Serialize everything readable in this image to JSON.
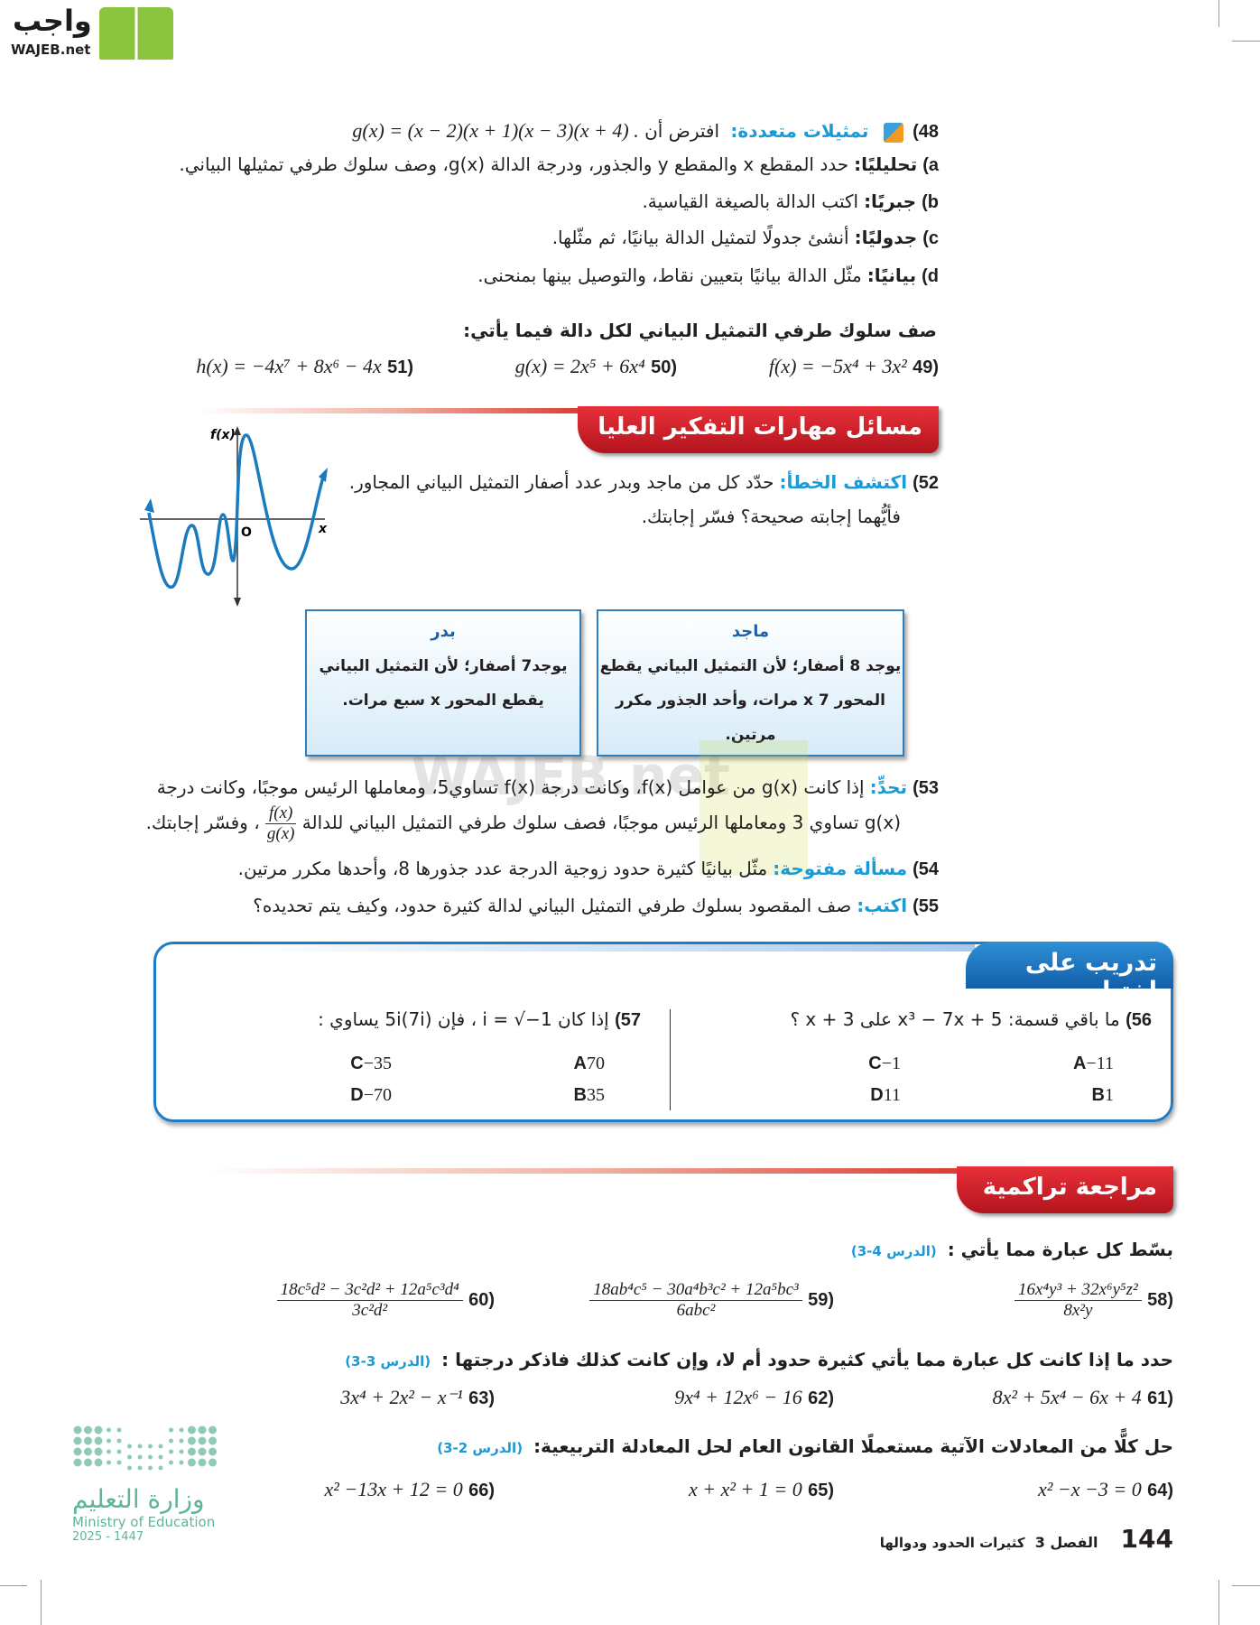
{
  "logo": {
    "arabic": "واجب",
    "latin": "WAJEB.net",
    "colors": {
      "green": "#7ab32e",
      "dark": "#1c1c1c"
    }
  },
  "watermark": "WAJEB.net",
  "q48": {
    "num": "48)",
    "label": "تمثيلات متعددة:",
    "text": "افترض أن",
    "math": "g(x) = (x − 2)(x + 1)(x − 3)(x + 4) .",
    "parts": [
      {
        "letter": "a)",
        "label": "تحليليًا:",
        "text": "حدد المقطع x والمقطع y والجذور، ودرجة الدالة g(x)، وصف سلوك طرفي تمثيلها البياني."
      },
      {
        "letter": "b)",
        "label": "جبريًا:",
        "text": "اكتب الدالة بالصيغة القياسية."
      },
      {
        "letter": "c)",
        "label": "جدوليًا:",
        "text": "أنشئ جدولًا لتمثيل الدالة بيانيًا، ثم مثّلها."
      },
      {
        "letter": "d)",
        "label": "بيانيًا:",
        "text": "مثّل الدالة بيانيًا بتعيين نقاط، والتوصيل بينها بمنحنى."
      }
    ]
  },
  "instr_end": "صف سلوك طرفي التمثيل البياني لكل دالة فيما يأتي:",
  "q49": {
    "num": "(49",
    "math": "f(x) = −5x⁴ + 3x²"
  },
  "q50": {
    "num": "(50",
    "math": "g(x) = 2x⁵ + 6x⁴"
  },
  "q51": {
    "num": "(51",
    "math": "h(x) = −4x⁷ + 8x⁶ − 4x"
  },
  "hots_title": "مسائل مهارات التفكير العليا",
  "q52": {
    "num": "52)",
    "label": "اكتشف الخطأ:",
    "text1": "حدّد كل من ماجد وبدر عدد أصفار التمثيل البياني المجاور.",
    "text2": "فأيُّهما إجابته صحيحة؟ فسّر إجابتك."
  },
  "graph": {
    "ylabel": "f(x)",
    "xlabel": "x",
    "origin": "O",
    "color": "#1a7bbf"
  },
  "majid": {
    "name": "ماجد",
    "l1": "يوجد 8 أصفار؛ لأن التمثيل البياني يقطع",
    "l2": "المحور x 7 مرات، وأحد الجذور مكرر",
    "l3": "مرتين."
  },
  "badr": {
    "name": "بدر",
    "l1": "يوجد7 أصفار؛ لأن التمثيل البياني",
    "l2": "يقطع المحور x سبع مرات."
  },
  "q53": {
    "num": "53)",
    "label": "تحدٍّ:",
    "text1": "إذا كانت g(x) من عوامل f(x)، وكانت درجة f(x) تساوي5، ومعاملها الرئيس موجبًا، وكانت درجة",
    "text2a": "g(x) تساوي 3 ومعاملها الرئيس موجبًا، فصف سلوك طرفي التمثيل البياني للدالة",
    "frac_n": "f(x)",
    "frac_d": "g(x)",
    "text2b": "، وفسّر إجابتك."
  },
  "q54": {
    "num": "54)",
    "label": "مسألة مفتوحة:",
    "text": "مثّل بيانيًا كثيرة حدود زوجية الدرجة عدد جذورها 8، وأحدها مكرر مرتين."
  },
  "q55": {
    "num": "55)",
    "label": "اكتب:",
    "text": "صف المقصود بسلوك طرفي التمثيل البياني لدالة كثيرة حدود، وكيف يتم تحديده؟"
  },
  "test_title": "تدريب على اختبار",
  "q56": {
    "num": "56)",
    "text": "ما باقي قسمة: x³ − 7x + 5 على x + 3 ؟",
    "options": [
      {
        "l": "A",
        "v": "−11"
      },
      {
        "l": "B",
        "v": "1"
      },
      {
        "l": "C",
        "v": "−1"
      },
      {
        "l": "D",
        "v": "11"
      }
    ]
  },
  "q57": {
    "num": "57)",
    "text": "إذا كان i = √−1 ، فإن 5i(7i) يساوي :",
    "options": [
      {
        "l": "A",
        "v": "70"
      },
      {
        "l": "B",
        "v": "35"
      },
      {
        "l": "C",
        "v": "−35"
      },
      {
        "l": "D",
        "v": "−70"
      }
    ]
  },
  "review_title": "مراجعة تراكمية",
  "simplify": {
    "text": "بسّط كل عبارة مما يأتي :",
    "lesson": "(الدرس 4-3)",
    "items": [
      {
        "num": "(58",
        "n": "16x⁴y³ + 32x⁶y⁵z²",
        "d": "8x²y"
      },
      {
        "num": "(59",
        "n": "18ab⁴c⁵ − 30a⁴b³c² + 12a⁵bc³",
        "d": "6abc²"
      },
      {
        "num": "(60",
        "n": "18c⁵d² − 3c²d² + 12a⁵c³d⁴",
        "d": "3c²d²"
      }
    ]
  },
  "poly": {
    "text": "حدد ما إذا كانت كل عبارة مما يأتي كثيرة حدود أم لا، وإن كانت كذلك فاذكر درجتها :",
    "lesson": "(الدرس 3-3)",
    "items": [
      {
        "num": "(61",
        "math": "8x² + 5x⁴ − 6x + 4"
      },
      {
        "num": "(62",
        "math": "9x⁴ + 12x⁶ − 16"
      },
      {
        "num": "(63",
        "math": "3x⁴ + 2x² − x⁻¹"
      }
    ]
  },
  "quad": {
    "text": "حل كلًّا من المعادلات الآتية مستعملًا القانون العام لحل المعادلة التربيعية:",
    "lesson": "(الدرس 2-3)",
    "items": [
      {
        "num": "(64",
        "math": "x² −x −3 = 0"
      },
      {
        "num": "(65",
        "math": "x + x² + 1 = 0"
      },
      {
        "num": "(66",
        "math": "x² −13x + 12 = 0"
      }
    ]
  },
  "ministry": {
    "arabic": "وزارة التعليم",
    "english": "Ministry of Education",
    "year": "2025 - 1447",
    "color": "#5fb49a"
  },
  "footer": {
    "page": "144",
    "chapter": "الفصل 3",
    "title": "كثيرات الحدود ودوالها"
  }
}
